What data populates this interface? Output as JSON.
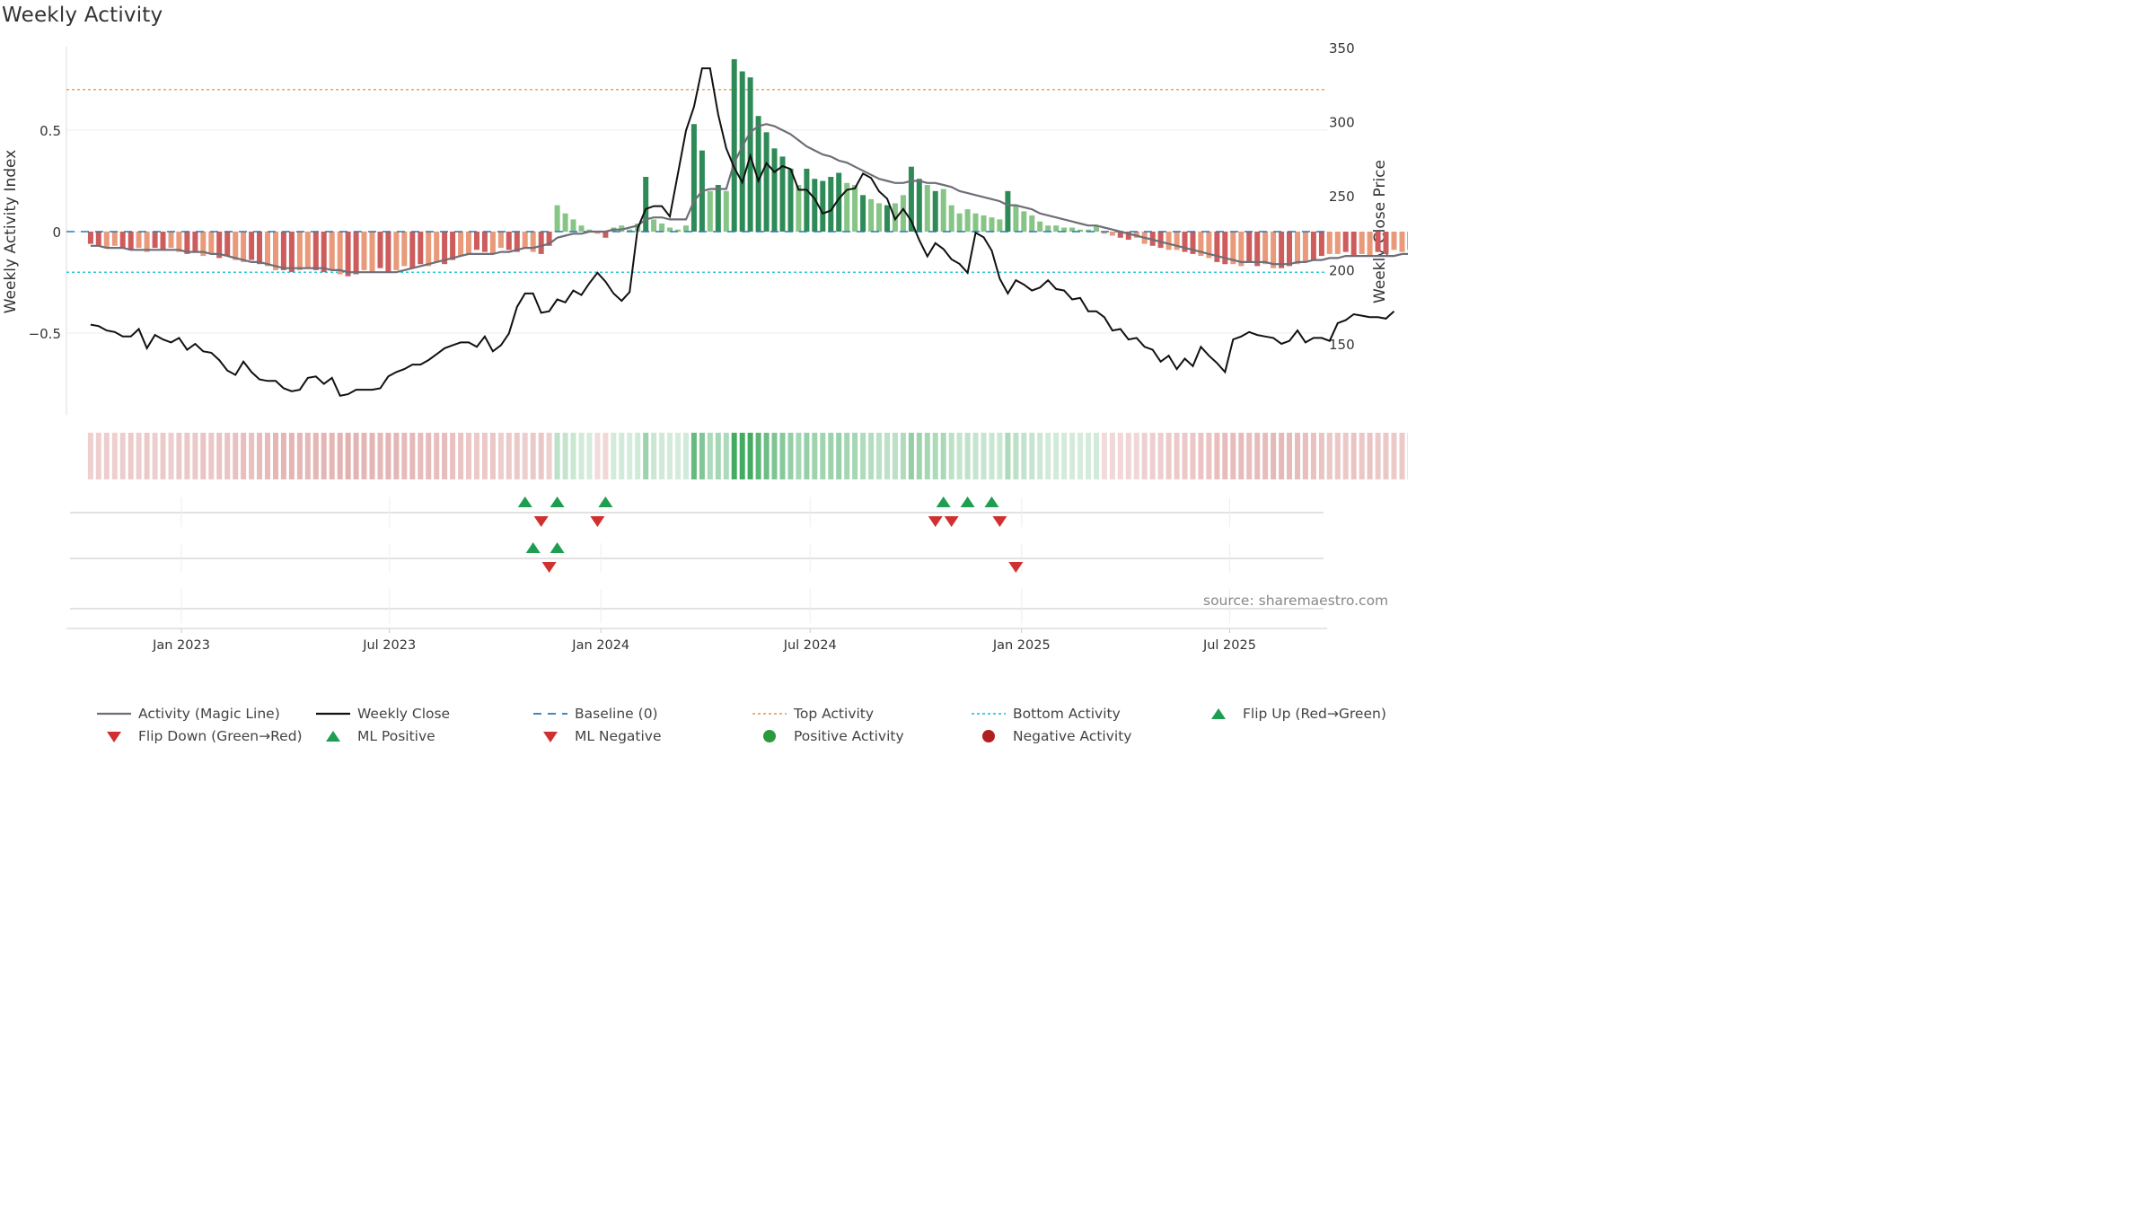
{
  "title": "Weekly Activity",
  "source": "source: sharemaestro.com",
  "colors": {
    "activity_line": "#6e6e78",
    "close_line": "#111111",
    "baseline": "#2878b4",
    "top_activity": "#f0a060",
    "bottom_activity": "#30c8d8",
    "flip_up": "#1e9e50",
    "flip_down": "#d03030",
    "positive": "#2a9a3a",
    "negative": "#b02020",
    "bar_pos_dark": "#2e8b57",
    "bar_pos_light": "#86c586",
    "bar_neg_dark": "#cd5c5c",
    "bar_neg_light": "#e89a7a"
  },
  "legend": [
    {
      "label": "Activity (Magic Line)",
      "symbol": "line-solid",
      "color": "#6e6e78"
    },
    {
      "label": "Weekly Close",
      "symbol": "line-solid",
      "color": "#111111"
    },
    {
      "label": "Baseline (0)",
      "symbol": "line-dash",
      "color": "#2878b4"
    },
    {
      "label": "Top Activity",
      "symbol": "line-dot",
      "color": "#f0a060"
    },
    {
      "label": "Bottom Activity",
      "symbol": "line-dot",
      "color": "#30c8d8"
    },
    {
      "label": "Flip Up (Red→Green)",
      "symbol": "triangle-up",
      "color": "#1e9e50"
    },
    {
      "label": "Flip Down (Green→Red)",
      "symbol": "triangle-down",
      "color": "#d03030"
    },
    {
      "label": "ML Positive",
      "symbol": "triangle-up",
      "color": "#1e9e50"
    },
    {
      "label": "ML Negative",
      "symbol": "triangle-down",
      "color": "#d03030"
    },
    {
      "label": "Positive Activity",
      "symbol": "circle",
      "color": "#2a9a3a"
    },
    {
      "label": "Negative Activity",
      "symbol": "circle",
      "color": "#b02020"
    }
  ],
  "chart_data": {
    "type": "bar",
    "ylabel": "Weekly Activity Index",
    "y2label": "Weekly Close Price",
    "ylim": [
      -0.9,
      0.9
    ],
    "y2lim": [
      100,
      350
    ],
    "yticks": [
      0.5,
      0,
      -0.5
    ],
    "ytick_labels": [
      "0.5",
      "0",
      "−0.5"
    ],
    "y2ticks": [
      350,
      300,
      250,
      200,
      150
    ],
    "x_tick_labels": [
      "Jan 2023",
      "Jul 2023",
      "Jan 2024",
      "Jul 2024",
      "Jan 2025",
      "Jul 2025"
    ],
    "x_tick_dates": [
      "2023-01-01",
      "2023-07-01",
      "2024-01-01",
      "2024-07-01",
      "2025-01-01",
      "2025-07-01"
    ],
    "start_date": "2022-10-14",
    "week_days": 7,
    "top_activity": 0.7,
    "bottom_activity": -0.2,
    "baseline": 0,
    "series": [
      {
        "name": "Weekly Activity Index",
        "values": [
          -0.06,
          -0.07,
          -0.08,
          -0.07,
          -0.08,
          -0.09,
          -0.08,
          -0.1,
          -0.08,
          -0.09,
          -0.08,
          -0.1,
          -0.11,
          -0.1,
          -0.12,
          -0.11,
          -0.13,
          -0.12,
          -0.14,
          -0.15,
          -0.14,
          -0.16,
          -0.17,
          -0.19,
          -0.19,
          -0.2,
          -0.19,
          -0.18,
          -0.19,
          -0.2,
          -0.19,
          -0.21,
          -0.22,
          -0.21,
          -0.19,
          -0.2,
          -0.18,
          -0.2,
          -0.19,
          -0.17,
          -0.18,
          -0.16,
          -0.17,
          -0.15,
          -0.16,
          -0.14,
          -0.12,
          -0.11,
          -0.09,
          -0.1,
          -0.11,
          -0.08,
          -0.09,
          -0.1,
          -0.08,
          -0.1,
          -0.11,
          -0.07,
          0.13,
          0.09,
          0.06,
          0.03,
          0.01,
          -0.01,
          -0.03,
          0.02,
          0.03,
          0.01,
          0.04,
          0.27,
          0.06,
          0.04,
          0.02,
          0.01,
          0.03,
          0.53,
          0.4,
          0.2,
          0.23,
          0.2,
          0.85,
          0.79,
          0.76,
          0.57,
          0.49,
          0.41,
          0.37,
          0.31,
          0.23,
          0.31,
          0.26,
          0.25,
          0.27,
          0.29,
          0.24,
          0.23,
          0.18,
          0.16,
          0.14,
          0.13,
          0.14,
          0.18,
          0.32,
          0.26,
          0.23,
          0.2,
          0.21,
          0.13,
          0.09,
          0.11,
          0.09,
          0.08,
          0.07,
          0.06,
          0.2,
          0.13,
          0.1,
          0.08,
          0.05,
          0.03,
          0.03,
          0.02,
          0.02,
          0.01,
          0.01,
          0.03,
          -0.01,
          -0.02,
          -0.03,
          -0.04,
          -0.03,
          -0.06,
          -0.07,
          -0.08,
          -0.09,
          -0.09,
          -0.1,
          -0.11,
          -0.12,
          -0.13,
          -0.15,
          -0.16,
          -0.16,
          -0.17,
          -0.15,
          -0.17,
          -0.16,
          -0.18,
          -0.18,
          -0.17,
          -0.16,
          -0.15,
          -0.14,
          -0.12,
          -0.11,
          -0.11,
          -0.1,
          -0.12,
          -0.11,
          -0.12,
          -0.1,
          -0.11,
          -0.09,
          -0.1,
          -0.09,
          -0.08,
          -0.09,
          -0.08,
          -0.09,
          -0.07,
          -0.08
        ]
      },
      {
        "name": "Activity (Magic Line)",
        "values": [
          -0.07,
          -0.07,
          -0.08,
          -0.08,
          -0.08,
          -0.09,
          -0.09,
          -0.09,
          -0.09,
          -0.09,
          -0.09,
          -0.09,
          -0.1,
          -0.1,
          -0.1,
          -0.11,
          -0.11,
          -0.12,
          -0.13,
          -0.14,
          -0.15,
          -0.15,
          -0.16,
          -0.17,
          -0.18,
          -0.18,
          -0.18,
          -0.18,
          -0.18,
          -0.18,
          -0.19,
          -0.19,
          -0.2,
          -0.2,
          -0.2,
          -0.2,
          -0.2,
          -0.2,
          -0.2,
          -0.19,
          -0.18,
          -0.17,
          -0.16,
          -0.15,
          -0.14,
          -0.13,
          -0.12,
          -0.11,
          -0.11,
          -0.11,
          -0.11,
          -0.1,
          -0.1,
          -0.09,
          -0.08,
          -0.08,
          -0.07,
          -0.06,
          -0.03,
          -0.02,
          -0.01,
          -0.01,
          0,
          0,
          0,
          0.01,
          0.01,
          0.02,
          0.03,
          0.06,
          0.07,
          0.07,
          0.06,
          0.06,
          0.06,
          0.15,
          0.2,
          0.21,
          0.21,
          0.21,
          0.34,
          0.42,
          0.49,
          0.52,
          0.53,
          0.52,
          0.5,
          0.48,
          0.45,
          0.42,
          0.4,
          0.38,
          0.37,
          0.35,
          0.34,
          0.32,
          0.3,
          0.28,
          0.26,
          0.25,
          0.24,
          0.24,
          0.25,
          0.25,
          0.24,
          0.24,
          0.23,
          0.22,
          0.2,
          0.19,
          0.18,
          0.17,
          0.16,
          0.15,
          0.13,
          0.13,
          0.12,
          0.11,
          0.09,
          0.08,
          0.07,
          0.06,
          0.05,
          0.04,
          0.03,
          0.03,
          0.02,
          0.01,
          0,
          -0.01,
          -0.02,
          -0.03,
          -0.04,
          -0.05,
          -0.06,
          -0.07,
          -0.08,
          -0.09,
          -0.1,
          -0.11,
          -0.12,
          -0.13,
          -0.14,
          -0.15,
          -0.15,
          -0.15,
          -0.15,
          -0.16,
          -0.16,
          -0.16,
          -0.15,
          -0.15,
          -0.14,
          -0.14,
          -0.13,
          -0.13,
          -0.12,
          -0.12,
          -0.12,
          -0.12,
          -0.12,
          -0.12,
          -0.12,
          -0.11,
          -0.11,
          -0.1,
          -0.1,
          -0.09,
          -0.09,
          -0.09,
          -0.09
        ]
      },
      {
        "name": "Weekly Close",
        "values": [
          163,
          162,
          159,
          158,
          155,
          155,
          160,
          147,
          156,
          153,
          151,
          154,
          146,
          150,
          145,
          144,
          139,
          132,
          129,
          138,
          131,
          126,
          125,
          125,
          120,
          118,
          119,
          127,
          128,
          123,
          127,
          115,
          116,
          119,
          119,
          119,
          120,
          128,
          131,
          133,
          136,
          136,
          139,
          143,
          147,
          149,
          151,
          151,
          148,
          155,
          145,
          149,
          157,
          175,
          184,
          184,
          171,
          172,
          180,
          178,
          186,
          183,
          191,
          198,
          192,
          184,
          179,
          185,
          228,
          241,
          243,
          243,
          236,
          265,
          294,
          310,
          336,
          336,
          305,
          282,
          269,
          259,
          277,
          260,
          272,
          266,
          270,
          268,
          254,
          254,
          248,
          238,
          240,
          248,
          254,
          255,
          265,
          262,
          253,
          248,
          234,
          241,
          233,
          220,
          209,
          218,
          214,
          207,
          204,
          198,
          225,
          222,
          213,
          194,
          184,
          193,
          190,
          186,
          188,
          193,
          187,
          186,
          180,
          181,
          172,
          172,
          168,
          159,
          160,
          153,
          154,
          148,
          146,
          138,
          142,
          133,
          140,
          135,
          148,
          142,
          137,
          131,
          153,
          155,
          158,
          156,
          155,
          154,
          150,
          152,
          159,
          151,
          154,
          154,
          152,
          164,
          166,
          170,
          169,
          168,
          168,
          167,
          172
        ]
      }
    ],
    "ml_index_row": {
      "label": "",
      "up_dates": [
        "2023-10-27",
        "2023-11-24",
        "2024-01-05",
        "2024-10-25",
        "2024-11-15",
        "2024-12-06"
      ],
      "down_dates": [
        "2023-11-10",
        "2023-12-29",
        "2024-10-18",
        "2024-11-01",
        "2024-12-13"
      ]
    },
    "magic_line_row": {
      "label": "",
      "up_dates": [
        "2023-11-03",
        "2023-11-24"
      ],
      "down_dates": [
        "2023-11-17",
        "2024-12-27"
      ]
    }
  }
}
